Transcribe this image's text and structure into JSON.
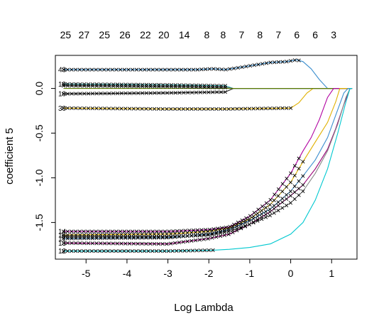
{
  "chart_data": {
    "type": "line",
    "xlabel": "Log Lambda",
    "ylabel": "coefficient 5",
    "xlim": [
      -5.75,
      1.62
    ],
    "ylim": [
      -1.91,
      0.37
    ],
    "x_ticks": [
      -5,
      -4,
      -3,
      -2,
      -1,
      0,
      1
    ],
    "y_ticks": [
      -1.5,
      -1.0,
      -0.5,
      0.0
    ],
    "top_axis": {
      "positions": [
        -5.5,
        -5.05,
        -4.55,
        -4.05,
        -3.55,
        -3.1,
        -2.6,
        -2.05,
        -1.65,
        -1.2,
        -0.75,
        -0.3,
        0.15,
        0.6,
        1.05,
        1.5
      ],
      "labels": [
        "25",
        "27",
        "25",
        "26",
        "22",
        "20",
        "14",
        "8",
        "8",
        "7",
        "8",
        "7",
        "6",
        "6",
        "3",
        ""
      ]
    },
    "line_labels": [
      {
        "text": "43",
        "y": 0.21
      },
      {
        "text": "19",
        "y": 0.05
      },
      {
        "text": "10",
        "y": -0.06
      },
      {
        "text": "30",
        "y": -0.22
      },
      {
        "text": "14",
        "y": -1.6
      },
      {
        "text": "16",
        "y": -1.64
      },
      {
        "text": "17",
        "y": -1.68
      },
      {
        "text": "13",
        "y": -1.73
      },
      {
        "text": "12",
        "y": -1.82
      }
    ],
    "series": [
      {
        "color": "#3d8fcf",
        "marker_end": 0.2,
        "values": [
          [
            -5.55,
            0.21
          ],
          [
            -2.3,
            0.21
          ],
          [
            -1.9,
            0.22
          ],
          [
            -1.6,
            0.21
          ],
          [
            -1.3,
            0.23
          ],
          [
            -0.9,
            0.26
          ],
          [
            -0.5,
            0.29
          ],
          [
            -0.1,
            0.3
          ],
          [
            0.15,
            0.32
          ],
          [
            0.3,
            0.3
          ],
          [
            0.5,
            0.22
          ],
          [
            0.7,
            0.1
          ],
          [
            0.9,
            0.0
          ],
          [
            1.1,
            0.0
          ],
          [
            1.5,
            0.0
          ]
        ]
      },
      {
        "color": "#1fa3a3",
        "marker_end": -1.6,
        "values": [
          [
            -5.55,
            0.05
          ],
          [
            -3.0,
            0.04
          ],
          [
            -1.6,
            0.03
          ],
          [
            -1.4,
            0.0
          ],
          [
            1.5,
            0.0
          ]
        ]
      },
      {
        "color": "#555555",
        "marker_end": -1.6,
        "values": [
          [
            -5.55,
            0.03
          ],
          [
            -3.0,
            0.02
          ],
          [
            -1.6,
            0.01
          ],
          [
            -1.4,
            0.0
          ],
          [
            1.5,
            0.0
          ]
        ]
      },
      {
        "color": "#222222",
        "marker_end": -1.6,
        "values": [
          [
            -5.55,
            -0.06
          ],
          [
            -3.0,
            -0.05
          ],
          [
            -1.6,
            -0.04
          ],
          [
            -1.4,
            0.0
          ],
          [
            1.5,
            0.0
          ]
        ]
      },
      {
        "color": "#e0b000",
        "marker_end": 0.0,
        "values": [
          [
            -5.55,
            -0.22
          ],
          [
            -3.0,
            -0.23
          ],
          [
            -1.6,
            -0.23
          ],
          [
            0.0,
            -0.22
          ],
          [
            0.2,
            -0.16
          ],
          [
            0.4,
            -0.05
          ],
          [
            0.55,
            0.0
          ],
          [
            1.5,
            0.0
          ]
        ]
      },
      {
        "color": "#5a7a00",
        "marker_end": null,
        "values": [
          [
            -5.55,
            0.0
          ],
          [
            1.5,
            0.0
          ]
        ]
      },
      {
        "color": "#b000a0",
        "marker_end": 0.2,
        "values": [
          [
            -5.55,
            -1.6
          ],
          [
            -3.0,
            -1.6
          ],
          [
            -2.0,
            -1.58
          ],
          [
            -1.5,
            -1.55
          ],
          [
            -1.0,
            -1.43
          ],
          [
            -0.5,
            -1.25
          ],
          [
            0.0,
            -0.95
          ],
          [
            0.3,
            -0.7
          ],
          [
            0.5,
            -0.55
          ],
          [
            0.7,
            -0.35
          ],
          [
            0.9,
            -0.1
          ],
          [
            1.05,
            0.0
          ],
          [
            1.5,
            0.0
          ]
        ]
      },
      {
        "color": "#e0b000",
        "marker_end": 0.3,
        "values": [
          [
            -5.55,
            -1.64
          ],
          [
            -3.0,
            -1.63
          ],
          [
            -2.0,
            -1.6
          ],
          [
            -1.5,
            -1.56
          ],
          [
            -1.0,
            -1.46
          ],
          [
            -0.5,
            -1.3
          ],
          [
            0.0,
            -1.05
          ],
          [
            0.3,
            -0.82
          ],
          [
            0.6,
            -0.6
          ],
          [
            0.9,
            -0.38
          ],
          [
            1.1,
            -0.15
          ],
          [
            1.2,
            0.0
          ],
          [
            1.5,
            0.0
          ]
        ]
      },
      {
        "color": "#3d8fcf",
        "marker_end": 0.3,
        "values": [
          [
            -5.55,
            -1.68
          ],
          [
            -3.0,
            -1.67
          ],
          [
            -2.0,
            -1.63
          ],
          [
            -1.5,
            -1.58
          ],
          [
            -1.0,
            -1.48
          ],
          [
            -0.5,
            -1.35
          ],
          [
            0.0,
            -1.15
          ],
          [
            0.3,
            -0.98
          ],
          [
            0.6,
            -0.8
          ],
          [
            0.9,
            -0.55
          ],
          [
            1.1,
            -0.3
          ],
          [
            1.3,
            -0.05
          ],
          [
            1.4,
            0.0
          ],
          [
            1.5,
            0.0
          ]
        ]
      },
      {
        "color": "#990077",
        "marker_end": 0.3,
        "values": [
          [
            -5.55,
            -1.73
          ],
          [
            -3.0,
            -1.74
          ],
          [
            -2.0,
            -1.68
          ],
          [
            -1.5,
            -1.63
          ],
          [
            -1.0,
            -1.52
          ],
          [
            -0.5,
            -1.38
          ],
          [
            0.0,
            -1.2
          ],
          [
            0.3,
            -1.08
          ],
          [
            0.6,
            -0.9
          ],
          [
            0.9,
            -0.68
          ],
          [
            1.1,
            -0.45
          ],
          [
            1.3,
            -0.18
          ],
          [
            1.45,
            0.0
          ],
          [
            1.5,
            0.0
          ]
        ]
      },
      {
        "color": "#888888",
        "marker_end": 0.3,
        "values": [
          [
            -5.55,
            -1.66
          ],
          [
            -3.0,
            -1.66
          ],
          [
            -2.0,
            -1.64
          ],
          [
            -1.5,
            -1.6
          ],
          [
            -1.0,
            -1.52
          ],
          [
            -0.5,
            -1.42
          ],
          [
            0.0,
            -1.28
          ],
          [
            0.3,
            -1.15
          ],
          [
            0.6,
            -0.95
          ],
          [
            0.9,
            -0.7
          ],
          [
            1.15,
            -0.4
          ],
          [
            1.35,
            -0.1
          ],
          [
            1.45,
            0.0
          ],
          [
            1.5,
            0.0
          ]
        ]
      },
      {
        "color": "#00c8d0",
        "marker_end": -1.9,
        "values": [
          [
            -5.55,
            -1.82
          ],
          [
            -3.0,
            -1.82
          ],
          [
            -1.9,
            -1.81
          ],
          [
            -1.5,
            -1.8
          ],
          [
            -1.0,
            -1.78
          ],
          [
            -0.5,
            -1.74
          ],
          [
            0.0,
            -1.63
          ],
          [
            0.3,
            -1.5
          ],
          [
            0.6,
            -1.25
          ],
          [
            0.9,
            -0.9
          ],
          [
            1.15,
            -0.5
          ],
          [
            1.35,
            -0.15
          ],
          [
            1.45,
            0.0
          ],
          [
            1.5,
            0.0
          ]
        ]
      }
    ]
  }
}
